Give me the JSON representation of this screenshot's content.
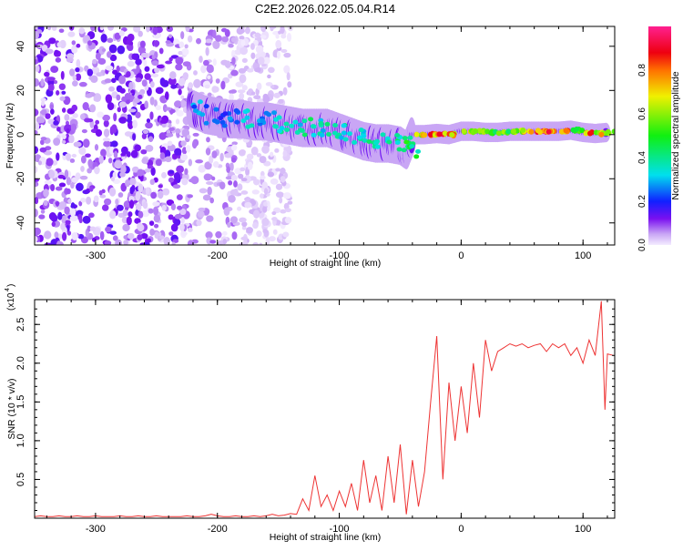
{
  "title": "C2E2.2026.022.05.04.R14",
  "chart_data": [
    {
      "type": "heatmap",
      "xlabel": "Height of straight line (km)",
      "ylabel": "Frequency (Hz)",
      "xlim": [
        -350,
        126
      ],
      "ylim": [
        -50,
        49
      ],
      "xticks": [
        -300,
        -200,
        -100,
        0,
        100
      ],
      "yticks": [
        -40,
        -20,
        0,
        20,
        40
      ],
      "colorbar": {
        "label": "Normalized spectral amplitude",
        "range": [
          0,
          1
        ],
        "ticks": [
          "0.0",
          "0.2",
          "0.4",
          "0.6",
          "0.8"
        ]
      },
      "noise_region": {
        "x_range": [
          -350,
          -160
        ],
        "amplitude_max": 0.15
      },
      "ridge": {
        "x": [
          -222,
          -210,
          -200,
          -190,
          -180,
          -170,
          -160,
          -150,
          -140,
          -130,
          -120,
          -110,
          -100,
          -90,
          -80,
          -70,
          -60,
          -50,
          -45,
          -40,
          -30,
          -20,
          -10,
          0,
          10,
          20,
          30,
          40,
          50,
          60,
          70,
          80,
          90,
          100,
          110,
          120
        ],
        "freq": [
          12,
          9,
          8,
          7,
          7,
          6,
          6,
          5,
          4,
          3,
          3,
          3,
          1,
          -1,
          -3,
          -4,
          -4,
          -5,
          -7,
          0,
          0,
          0.5,
          0,
          1.5,
          1.5,
          1,
          1,
          1.5,
          1.5,
          1.5,
          1.5,
          1.5,
          2,
          1,
          0.5,
          1
        ],
        "amplitude": [
          0.3,
          0.3,
          0.25,
          0.3,
          0.35,
          0.3,
          0.35,
          0.4,
          0.4,
          0.45,
          0.4,
          0.45,
          0.4,
          0.4,
          0.45,
          0.4,
          0.45,
          0.45,
          0.5,
          0.75,
          0.85,
          0.9,
          0.85,
          0.7,
          0.6,
          0.6,
          0.6,
          0.65,
          0.75,
          0.9,
          0.9,
          0.85,
          0.6,
          0.85,
          0.75,
          0.6
        ]
      }
    },
    {
      "type": "line",
      "xlabel": "Height of straight line (km)",
      "ylabel": "SNR (10 * v/v)",
      "yscale_label": "(x10",
      "yscale_exp": "4",
      "xlim": [
        -350,
        126
      ],
      "ylim": [
        0,
        2.82
      ],
      "xticks": [
        -300,
        -200,
        -100,
        0,
        100
      ],
      "yticks": [
        "0.5",
        "1.0",
        "1.5",
        "2.0",
        "2.5"
      ],
      "color": "#ee3333",
      "x": [
        -350,
        -345,
        -340,
        -335,
        -330,
        -325,
        -320,
        -315,
        -310,
        -305,
        -300,
        -295,
        -290,
        -285,
        -280,
        -275,
        -270,
        -265,
        -260,
        -255,
        -250,
        -245,
        -240,
        -235,
        -230,
        -225,
        -220,
        -215,
        -210,
        -205,
        -200,
        -195,
        -190,
        -185,
        -180,
        -175,
        -170,
        -165,
        -160,
        -155,
        -150,
        -145,
        -140,
        -135,
        -130,
        -125,
        -120,
        -115,
        -110,
        -105,
        -100,
        -95,
        -90,
        -85,
        -80,
        -75,
        -70,
        -65,
        -60,
        -55,
        -50,
        -45,
        -40,
        -35,
        -30,
        -25,
        -20,
        -15,
        -10,
        -5,
        0,
        5,
        10,
        15,
        20,
        25,
        30,
        35,
        40,
        45,
        50,
        55,
        60,
        65,
        70,
        75,
        80,
        85,
        90,
        95,
        100,
        105,
        110,
        115,
        118,
        120,
        125
      ],
      "y": [
        0.02,
        0.03,
        0.02,
        0.02,
        0.03,
        0.02,
        0.02,
        0.03,
        0.02,
        0.02,
        0.03,
        0.02,
        0.02,
        0.02,
        0.03,
        0.02,
        0.02,
        0.03,
        0.02,
        0.02,
        0.03,
        0.02,
        0.02,
        0.02,
        0.02,
        0.03,
        0.02,
        0.02,
        0.03,
        0.05,
        0.03,
        0.02,
        0.02,
        0.03,
        0.02,
        0.02,
        0.03,
        0.02,
        0.03,
        0.05,
        0.03,
        0.04,
        0.06,
        0.05,
        0.25,
        0.1,
        0.55,
        0.15,
        0.3,
        0.1,
        0.35,
        0.15,
        0.45,
        0.1,
        0.75,
        0.2,
        0.55,
        0.1,
        0.8,
        0.2,
        0.95,
        0.05,
        0.75,
        0.15,
        0.6,
        1.5,
        2.35,
        0.5,
        1.75,
        1.0,
        1.7,
        1.1,
        2.0,
        1.3,
        2.3,
        1.9,
        2.15,
        2.2,
        2.25,
        2.22,
        2.25,
        2.2,
        2.23,
        2.25,
        2.15,
        2.25,
        2.2,
        2.25,
        2.1,
        2.2,
        2.0,
        2.3,
        2.1,
        2.8,
        1.4,
        2.12,
        2.1
      ]
    }
  ]
}
